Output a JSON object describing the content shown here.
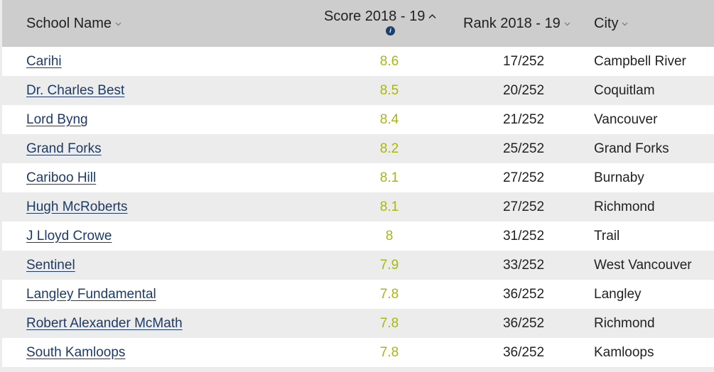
{
  "header": {
    "school_name": "School Name",
    "score": "Score 2018 - 19",
    "rank": "Rank 2018 - 19",
    "city": "City",
    "info_icon": "i"
  },
  "icons": {
    "sort_down": "chevron-down-icon",
    "sort_up": "chevron-up-icon",
    "info": "info-icon"
  },
  "colors": {
    "header_bg": "#cdcdcd",
    "row_alt": "#ececec",
    "link": "#1d3b66",
    "score": "#a8b712"
  },
  "rows": [
    {
      "school": "Carihi",
      "score": "8.6",
      "rank": "17/252",
      "city": "Campbell River"
    },
    {
      "school": "Dr. Charles Best",
      "score": "8.5",
      "rank": "20/252",
      "city": "Coquitlam"
    },
    {
      "school": "Lord Byng",
      "score": "8.4",
      "rank": "21/252",
      "city": "Vancouver"
    },
    {
      "school": "Grand Forks",
      "score": "8.2",
      "rank": "25/252",
      "city": "Grand Forks"
    },
    {
      "school": "Cariboo Hill",
      "score": "8.1",
      "rank": "27/252",
      "city": "Burnaby"
    },
    {
      "school": "Hugh McRoberts",
      "score": "8.1",
      "rank": "27/252",
      "city": "Richmond"
    },
    {
      "school": "J Lloyd Crowe",
      "score": "8",
      "rank": "31/252",
      "city": "Trail"
    },
    {
      "school": "Sentinel",
      "score": "7.9",
      "rank": "33/252",
      "city": "West Vancouver"
    },
    {
      "school": "Langley Fundamental",
      "score": "7.8",
      "rank": "36/252",
      "city": "Langley"
    },
    {
      "school": "Robert Alexander McMath",
      "score": "7.8",
      "rank": "36/252",
      "city": "Richmond"
    },
    {
      "school": "South Kamloops",
      "score": "7.8",
      "rank": "36/252",
      "city": "Kamloops"
    }
  ]
}
